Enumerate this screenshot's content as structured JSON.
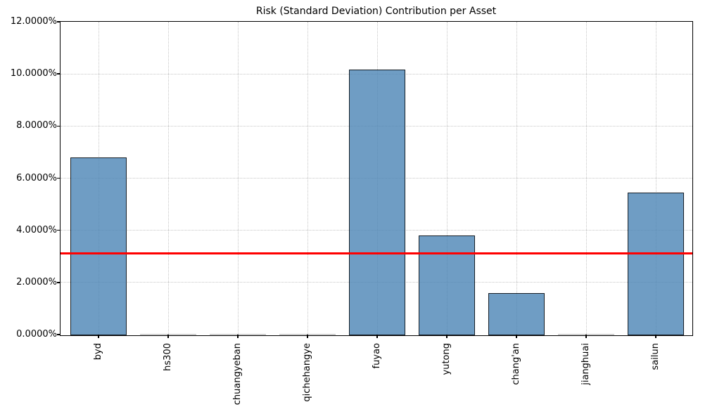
{
  "chart_data": {
    "type": "bar",
    "title": "Risk (Standard Deviation) Contribution per Asset",
    "categories": [
      "byd",
      "hs300",
      "chuangyeban",
      "qichehangye",
      "fuyao",
      "yutong",
      "chang'an",
      "jianghuai",
      "sailun"
    ],
    "values": [
      6.8,
      0.0,
      0.0,
      0.0,
      10.19,
      3.82,
      1.61,
      0.0,
      5.47
    ],
    "unit": "%",
    "xlabel": "",
    "ylabel": "",
    "ylim": [
      0,
      12
    ],
    "yticks": [
      0,
      2,
      4,
      6,
      8,
      10,
      12
    ],
    "ytick_labels": [
      "0.0000%",
      "2.0000%",
      "4.0000%",
      "6.0000%",
      "8.0000%",
      "10.0000%",
      "12.0000%"
    ],
    "grid": true,
    "grid_style": "dotted",
    "legend": false,
    "reference_line": {
      "value": 3.1,
      "color": "#ff0000"
    },
    "colors": {
      "bar_fill": "rgba(70,130,180,0.78)",
      "bar_edge": "rgba(0,0,0,0.8)",
      "grid": "#c6c6c6",
      "spine": "#000000",
      "zero_bar_edge": "#cccccc"
    }
  }
}
